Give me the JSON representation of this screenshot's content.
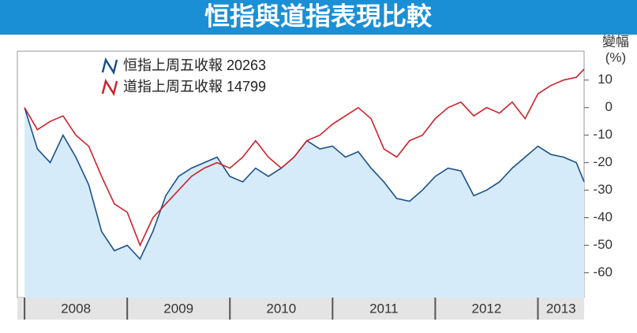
{
  "chart_data": {
    "type": "line",
    "title": "恒指與道指表現比較",
    "ylabel": [
      "變幅",
      "(%)"
    ],
    "x": [
      2008.0,
      2008.125,
      2008.25,
      2008.375,
      2008.5,
      2008.625,
      2008.75,
      2008.875,
      2009.0,
      2009.125,
      2009.25,
      2009.375,
      2009.5,
      2009.625,
      2009.75,
      2009.875,
      2010.0,
      2010.125,
      2010.25,
      2010.375,
      2010.5,
      2010.625,
      2010.75,
      2010.875,
      2011.0,
      2011.125,
      2011.25,
      2011.375,
      2011.5,
      2011.625,
      2011.75,
      2011.875,
      2012.0,
      2012.125,
      2012.25,
      2012.375,
      2012.5,
      2012.625,
      2012.75,
      2012.875,
      2013.0,
      2013.125,
      2013.25,
      2013.375,
      2013.45
    ],
    "series": [
      {
        "name": "恒指上周五收報 20263",
        "color": "#1a4f8a",
        "fill": "#d6ebfa",
        "values": [
          0,
          -15,
          -20,
          -10,
          -18,
          -28,
          -45,
          -52,
          -50,
          -55,
          -45,
          -32,
          -25,
          -22,
          -20,
          -18,
          -25,
          -27,
          -22,
          -25,
          -22,
          -18,
          -12,
          -15,
          -14,
          -18,
          -16,
          -22,
          -27,
          -33,
          -34,
          -30,
          -25,
          -22,
          -23,
          -32,
          -30,
          -27,
          -22,
          -18,
          -14,
          -17,
          -18,
          -20,
          -27
        ]
      },
      {
        "name": "道指上周五收報 14799",
        "color": "#d0202a",
        "values": [
          0,
          -8,
          -5,
          -3,
          -10,
          -14,
          -25,
          -35,
          -38,
          -50,
          -40,
          -35,
          -30,
          -25,
          -22,
          -20,
          -22,
          -18,
          -12,
          -18,
          -22,
          -18,
          -12,
          -10,
          -6,
          -3,
          0,
          -4,
          -15,
          -18,
          -12,
          -10,
          -4,
          0,
          2,
          -3,
          0,
          -2,
          2,
          -4,
          5,
          8,
          10,
          11,
          14
        ]
      }
    ],
    "xlim": [
      2007.93,
      2013.45
    ],
    "xticks": [
      2008,
      2009,
      2010,
      2011,
      2012,
      2013
    ],
    "ylim": [
      -69,
      20.5
    ],
    "yticks": [
      -60,
      -50,
      -40,
      -30,
      -20,
      -10,
      0,
      10
    ]
  }
}
